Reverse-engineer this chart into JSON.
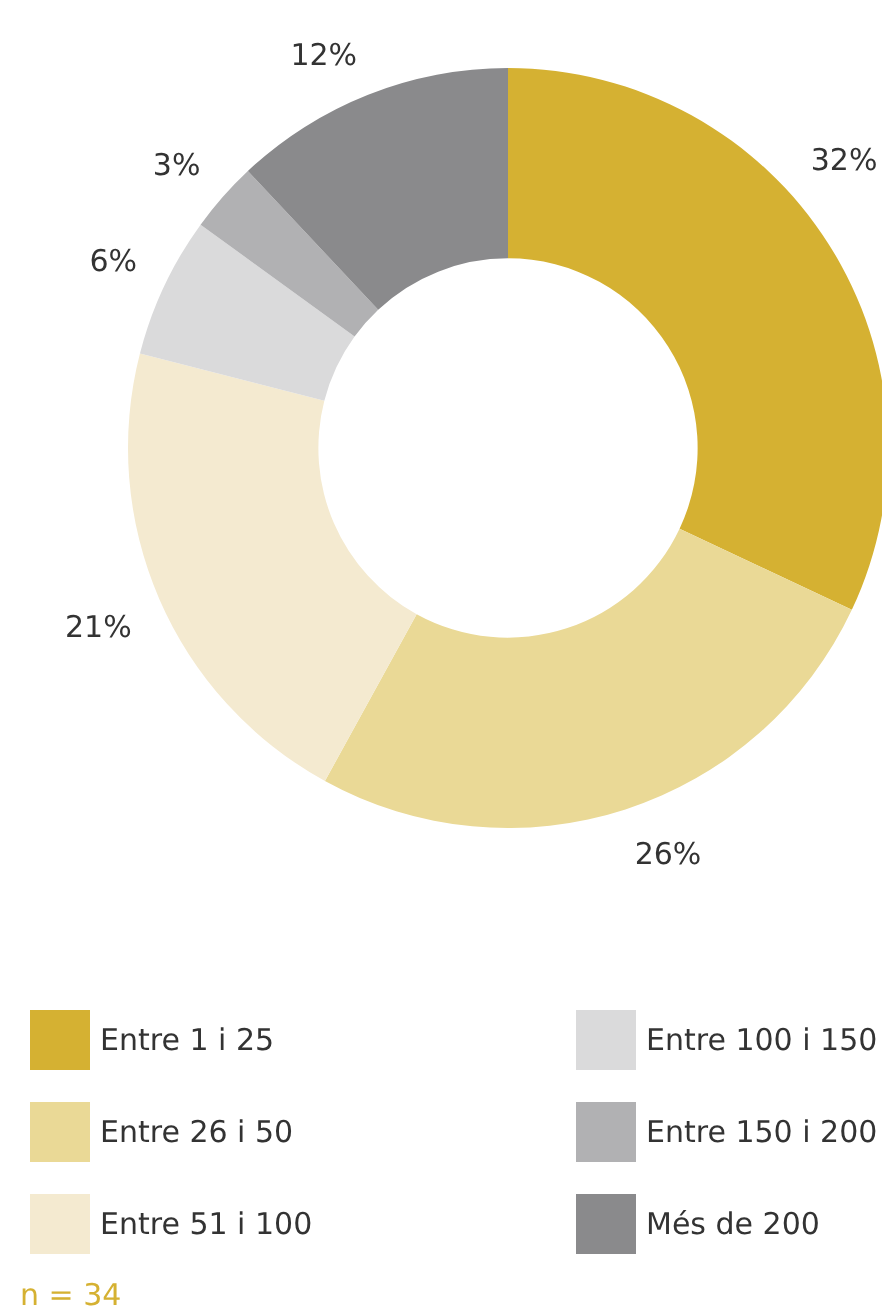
{
  "chart_data": {
    "type": "donut",
    "categories": [
      "Entre 1 i 25",
      "Entre 26 i 50",
      "Entre 51 i 100",
      "Entre 100 i 150",
      "Entre 150 i 200",
      "Més de 200"
    ],
    "values": [
      32,
      26,
      21,
      6,
      3,
      12
    ],
    "value_labels": [
      "32%",
      "26%",
      "21%",
      "6%",
      "3%",
      "12%"
    ],
    "colors": [
      "#d5b132",
      "#ead996",
      "#f4ead0",
      "#dadadb",
      "#b1b1b3",
      "#8a8a8c"
    ],
    "legend": "bottom",
    "annotations": [
      "n = 34"
    ]
  }
}
